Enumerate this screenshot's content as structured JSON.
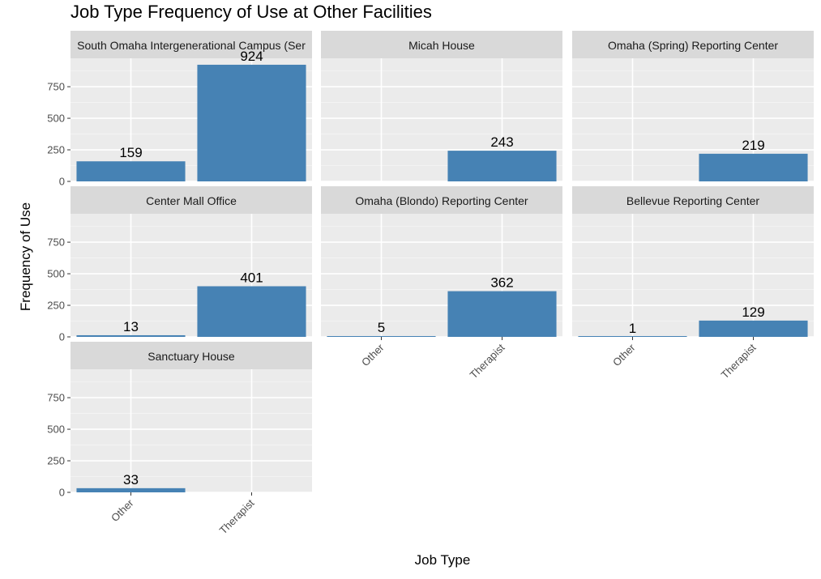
{
  "chart_data": {
    "type": "bar",
    "title": "Job Type Frequency of Use at Other Facilities",
    "xlabel": "Job Type",
    "ylabel": "Frequency of Use",
    "categories": [
      "Other",
      "Therapist"
    ],
    "ylim": [
      0,
      975
    ],
    "yticks": [
      0,
      250,
      500,
      750
    ],
    "grid": true,
    "bar_color": "#4682B4",
    "panel_background": "#EBEBEB",
    "strip_background": "#D9D9D9",
    "panels": [
      {
        "name": "South Omaha Intergenerational Campus (Ser",
        "values": [
          159,
          924
        ]
      },
      {
        "name": "Micah House",
        "values": [
          null,
          243
        ]
      },
      {
        "name": "Omaha (Spring) Reporting Center",
        "values": [
          null,
          219
        ]
      },
      {
        "name": "Center Mall Office",
        "values": [
          13,
          401
        ]
      },
      {
        "name": "Omaha (Blondo) Reporting Center",
        "values": [
          5,
          362
        ]
      },
      {
        "name": "Bellevue Reporting Center",
        "values": [
          1,
          129
        ]
      },
      {
        "name": "Sanctuary House",
        "values": [
          33,
          null
        ]
      }
    ]
  }
}
